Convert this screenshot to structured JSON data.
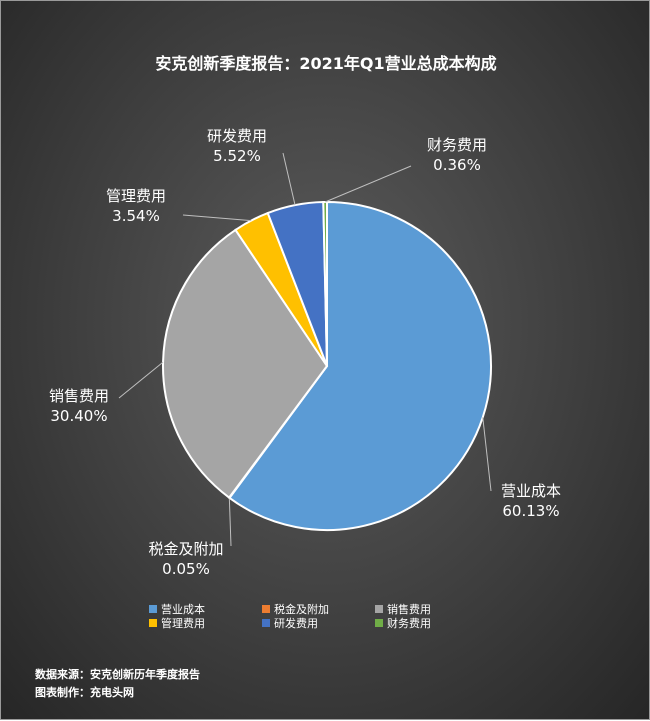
{
  "chart_data": {
    "type": "pie",
    "title": "安克创新季度报告：2021年Q1营业总成本构成",
    "slices": [
      {
        "name": "营业成本",
        "value": 60.13,
        "label": "60.13%",
        "color": "#5b9bd5"
      },
      {
        "name": "税金及附加",
        "value": 0.05,
        "label": "0.05%",
        "color": "#ed7d31"
      },
      {
        "name": "销售费用",
        "value": 30.4,
        "label": "30.40%",
        "color": "#a5a5a5"
      },
      {
        "name": "管理费用",
        "value": 3.54,
        "label": "3.54%",
        "color": "#ffc000"
      },
      {
        "name": "研发费用",
        "value": 5.52,
        "label": "5.52%",
        "color": "#4472c4"
      },
      {
        "name": "财务费用",
        "value": 0.36,
        "label": "0.36%",
        "color": "#70ad47"
      }
    ],
    "legend_position": "bottom"
  },
  "footer": {
    "source": "数据来源：安克创新历年季度报告",
    "credit": "图表制作：充电头网"
  }
}
